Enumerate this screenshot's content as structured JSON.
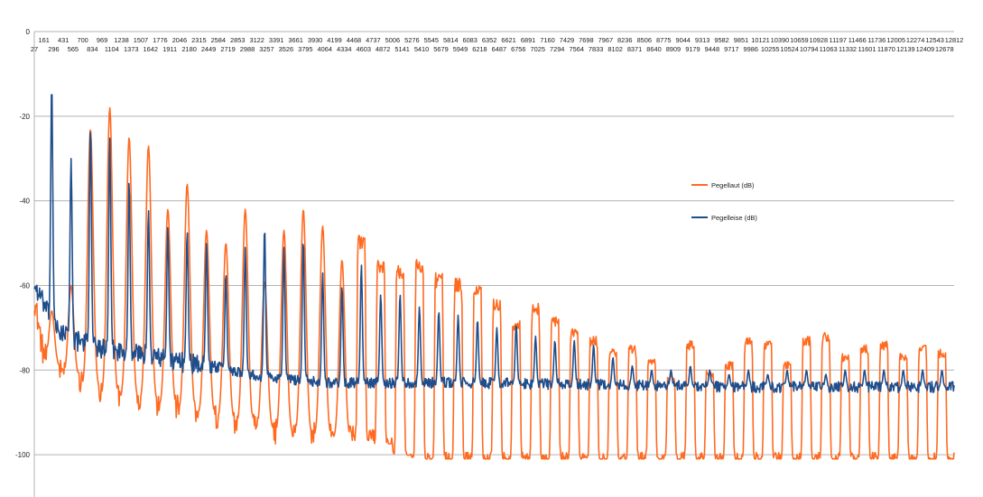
{
  "chart_data": {
    "type": "line",
    "title": "",
    "xlabel": "",
    "ylabel": "",
    "ylim": [
      -110,
      0
    ],
    "yticks": [
      0,
      -20,
      -40,
      -60,
      -80,
      -100
    ],
    "grid": "horizontal",
    "x_axis_position": "top",
    "legend_position": "right",
    "x_tick_labels_row1": [
      "161",
      "431",
      "700",
      "969",
      "1238",
      "1507",
      "1776",
      "2046",
      "2315",
      "2584",
      "2853",
      "3122",
      "3391",
      "3661",
      "3930",
      "4199",
      "4468",
      "4737",
      "5006",
      "5276",
      "5545",
      "5814",
      "6083",
      "6352",
      "6621",
      "6891",
      "7160",
      "7429",
      "7698",
      "7967",
      "8236",
      "8506",
      "8775",
      "9044",
      "9313",
      "9582",
      "9851",
      "10121",
      "10390",
      "10659",
      "10928",
      "11197",
      "11466",
      "11736",
      "12005",
      "12274",
      "12543",
      "12812"
    ],
    "x_tick_labels_row2": [
      "27",
      "296",
      "565",
      "834",
      "1104",
      "1373",
      "1642",
      "1911",
      "2180",
      "2449",
      "2719",
      "2988",
      "3257",
      "3526",
      "3795",
      "4064",
      "4334",
      "4603",
      "4872",
      "5141",
      "5410",
      "5679",
      "5949",
      "6218",
      "6487",
      "6756",
      "7025",
      "7294",
      "7564",
      "7833",
      "8102",
      "8371",
      "8640",
      "8909",
      "9179",
      "9448",
      "9717",
      "9986",
      "10255",
      "10524",
      "10794",
      "11063",
      "11332",
      "11601",
      "11870",
      "12139",
      "12409",
      "12678"
    ],
    "x_range_hz": [
      27,
      12812
    ],
    "harmonic_frequencies_hz": [
      269,
      538,
      807,
      1076,
      1345,
      1614,
      1883,
      2152,
      2421,
      2690,
      2959,
      3228,
      3497,
      3766,
      4035,
      4304,
      4573,
      4842,
      5111,
      5380,
      5649,
      5918,
      6187,
      6456,
      6725,
      6994,
      7263,
      7532,
      7801,
      8070,
      8339,
      8608,
      8877,
      9146,
      9415,
      9684,
      9953,
      10222,
      10491,
      10760,
      11029,
      11298,
      11567,
      11836,
      12105,
      12374,
      12643
    ],
    "series": [
      {
        "name": "Pegellaut (dB)",
        "color": "#ff6a21",
        "floor_points": [
          [
            27,
            -63
          ],
          [
            150,
            -76
          ],
          [
            300,
            -80
          ],
          [
            600,
            -82
          ],
          [
            1000,
            -86
          ],
          [
            1500,
            -87
          ],
          [
            2000,
            -89
          ],
          [
            2500,
            -91
          ],
          [
            3000,
            -93
          ],
          [
            3500,
            -95
          ],
          [
            4200,
            -96
          ],
          [
            4800,
            -97
          ],
          [
            5200,
            -101
          ],
          [
            6000,
            -101
          ],
          [
            8000,
            -101
          ],
          [
            10000,
            -101
          ],
          [
            12812,
            -101
          ]
        ],
        "peaks": [
          -66,
          -60,
          -23,
          -18,
          -25,
          -27,
          -42,
          -36,
          -47,
          -50,
          -42,
          -59,
          -47,
          -42,
          -46,
          -54,
          -48,
          -54,
          -55,
          -53,
          -57,
          -58,
          -60,
          -63,
          -68,
          -64,
          -67,
          -70,
          -72,
          -75,
          -74,
          -77,
          -81,
          -73,
          -80,
          -78,
          -72,
          -73,
          -78,
          -72,
          -71,
          -76,
          -74,
          -73,
          -76,
          -74,
          -75
        ]
      },
      {
        "name": "Pegelleise (dB)",
        "color": "#1f4e8c",
        "floor_points": [
          [
            27,
            -60
          ],
          [
            150,
            -64
          ],
          [
            300,
            -70
          ],
          [
            600,
            -73
          ],
          [
            1000,
            -75
          ],
          [
            1500,
            -76
          ],
          [
            2000,
            -78
          ],
          [
            2500,
            -79
          ],
          [
            3000,
            -81
          ],
          [
            3500,
            -82
          ],
          [
            4200,
            -83
          ],
          [
            5000,
            -83
          ],
          [
            6000,
            -83
          ],
          [
            8000,
            -83.5
          ],
          [
            10000,
            -84
          ],
          [
            12812,
            -84
          ]
        ],
        "peaks": [
          -12,
          -30,
          -22,
          -25,
          -35,
          -42,
          -46,
          -47,
          -50,
          -57,
          -51,
          -46,
          -51,
          -49,
          -57,
          -60,
          -55,
          -62,
          -62,
          -65,
          -66,
          -67,
          -68,
          -70,
          -69,
          -72,
          -73,
          -73,
          -74,
          -77,
          -79,
          -80,
          -80,
          -79,
          -80,
          -81,
          -80,
          -81,
          -80,
          -80,
          -81,
          -80,
          -80,
          -80,
          -80,
          -80,
          -80
        ]
      }
    ]
  }
}
